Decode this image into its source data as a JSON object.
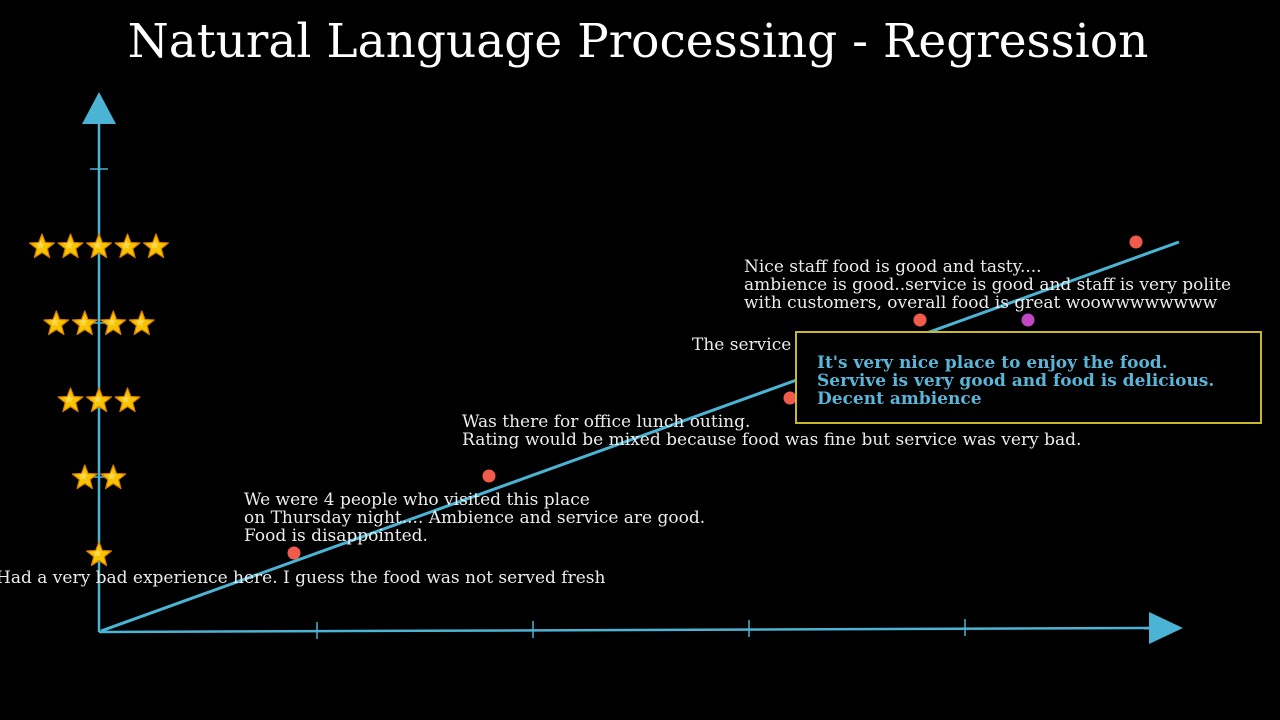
{
  "title": "Natural Language Processing - Regression",
  "colors": {
    "background": "#000000",
    "axis": "#4bb3d3",
    "regression_line": "#4bb3d3",
    "star_fill": "#f7c500",
    "star_edge": "#d97f00",
    "point": "#f05b4b",
    "highlight_point": "#c247c2",
    "highlight_border": "#c9b92a",
    "highlight_text": "#5ab6d8",
    "review_text": "#ececec"
  },
  "y_axis_ratings": [
    {
      "stars": 1,
      "icon": "star-icon"
    },
    {
      "stars": 2,
      "icon": "star-icon"
    },
    {
      "stars": 3,
      "icon": "star-icon"
    },
    {
      "stars": 4,
      "icon": "star-icon"
    },
    {
      "stars": 5,
      "icon": "star-icon"
    }
  ],
  "reviews": [
    {
      "lines": [
        "Had a very bad experience here. I guess the food was not served fresh"
      ]
    },
    {
      "lines": [
        "We were 4 people who visited this place",
        "on Thursday night.... Ambience and service are good.",
        "Food is disappointed."
      ]
    },
    {
      "lines": [
        "Was there for office lunch outing.",
        "Rating would be mixed because food was fine but service was very bad."
      ]
    },
    {
      "lines": [
        "The service"
      ]
    },
    {
      "lines": [
        "Nice staff food is good and tasty....",
        "ambience is good..service is good and staff is very polite",
        "with customers, overall food is great woowwwwwwww"
      ]
    }
  ],
  "highlight": {
    "lines": [
      "It's very nice place to enjoy the food.",
      "Servive is very good and food is delicious.",
      "Decent ambience"
    ]
  }
}
